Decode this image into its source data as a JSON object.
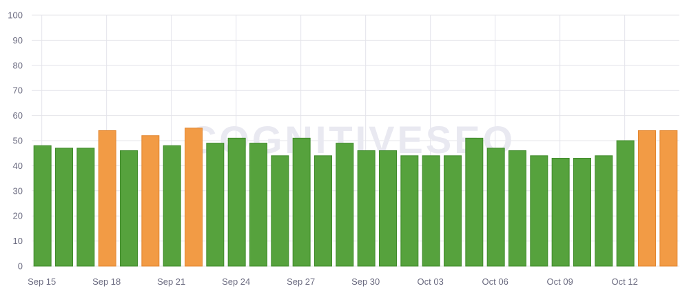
{
  "watermark": "COGNITIVESEO",
  "colors": {
    "green": "#56a23d",
    "green_edge": "#3f8a2a",
    "orange": "#f29b45",
    "orange_edge": "#e28630",
    "grid": "#e4e4ea",
    "axis_text": "#6b6b80"
  },
  "chart_data": {
    "type": "bar",
    "categories": [
      "Sep 15",
      "Sep 16",
      "Sep 17",
      "Sep 18",
      "Sep 19",
      "Sep 20",
      "Sep 21",
      "Sep 22",
      "Sep 23",
      "Sep 24",
      "Sep 25",
      "Sep 26",
      "Sep 27",
      "Sep 28",
      "Sep 29",
      "Sep 30",
      "Oct 01",
      "Oct 02",
      "Oct 03",
      "Oct 04",
      "Oct 05",
      "Oct 06",
      "Oct 07",
      "Oct 08",
      "Oct 09",
      "Oct 10",
      "Oct 11",
      "Oct 12",
      "Oct 13",
      "Oct 14"
    ],
    "values": [
      48,
      47,
      47,
      54,
      46,
      52,
      48,
      55,
      49,
      51,
      49,
      44,
      51,
      44,
      49,
      46,
      46,
      44,
      44,
      44,
      51,
      47,
      46,
      44,
      43,
      43,
      44,
      50,
      54,
      54
    ],
    "bar_colors": [
      "green",
      "green",
      "green",
      "orange",
      "green",
      "orange",
      "green",
      "orange",
      "green",
      "green",
      "green",
      "green",
      "green",
      "green",
      "green",
      "green",
      "green",
      "green",
      "green",
      "green",
      "green",
      "green",
      "green",
      "green",
      "green",
      "green",
      "green",
      "green",
      "orange",
      "orange"
    ],
    "x_tick_labels": [
      "Sep 15",
      "Sep 18",
      "Sep 21",
      "Sep 24",
      "Sep 27",
      "Sep 30",
      "Oct 03",
      "Oct 06",
      "Oct 09",
      "Oct 12"
    ],
    "x_tick_every": 3,
    "y_ticks": [
      0,
      10,
      20,
      30,
      40,
      50,
      60,
      70,
      80,
      90,
      100
    ],
    "ylim": [
      0,
      100
    ],
    "grid": true,
    "title": "",
    "xlabel": "",
    "ylabel": ""
  }
}
